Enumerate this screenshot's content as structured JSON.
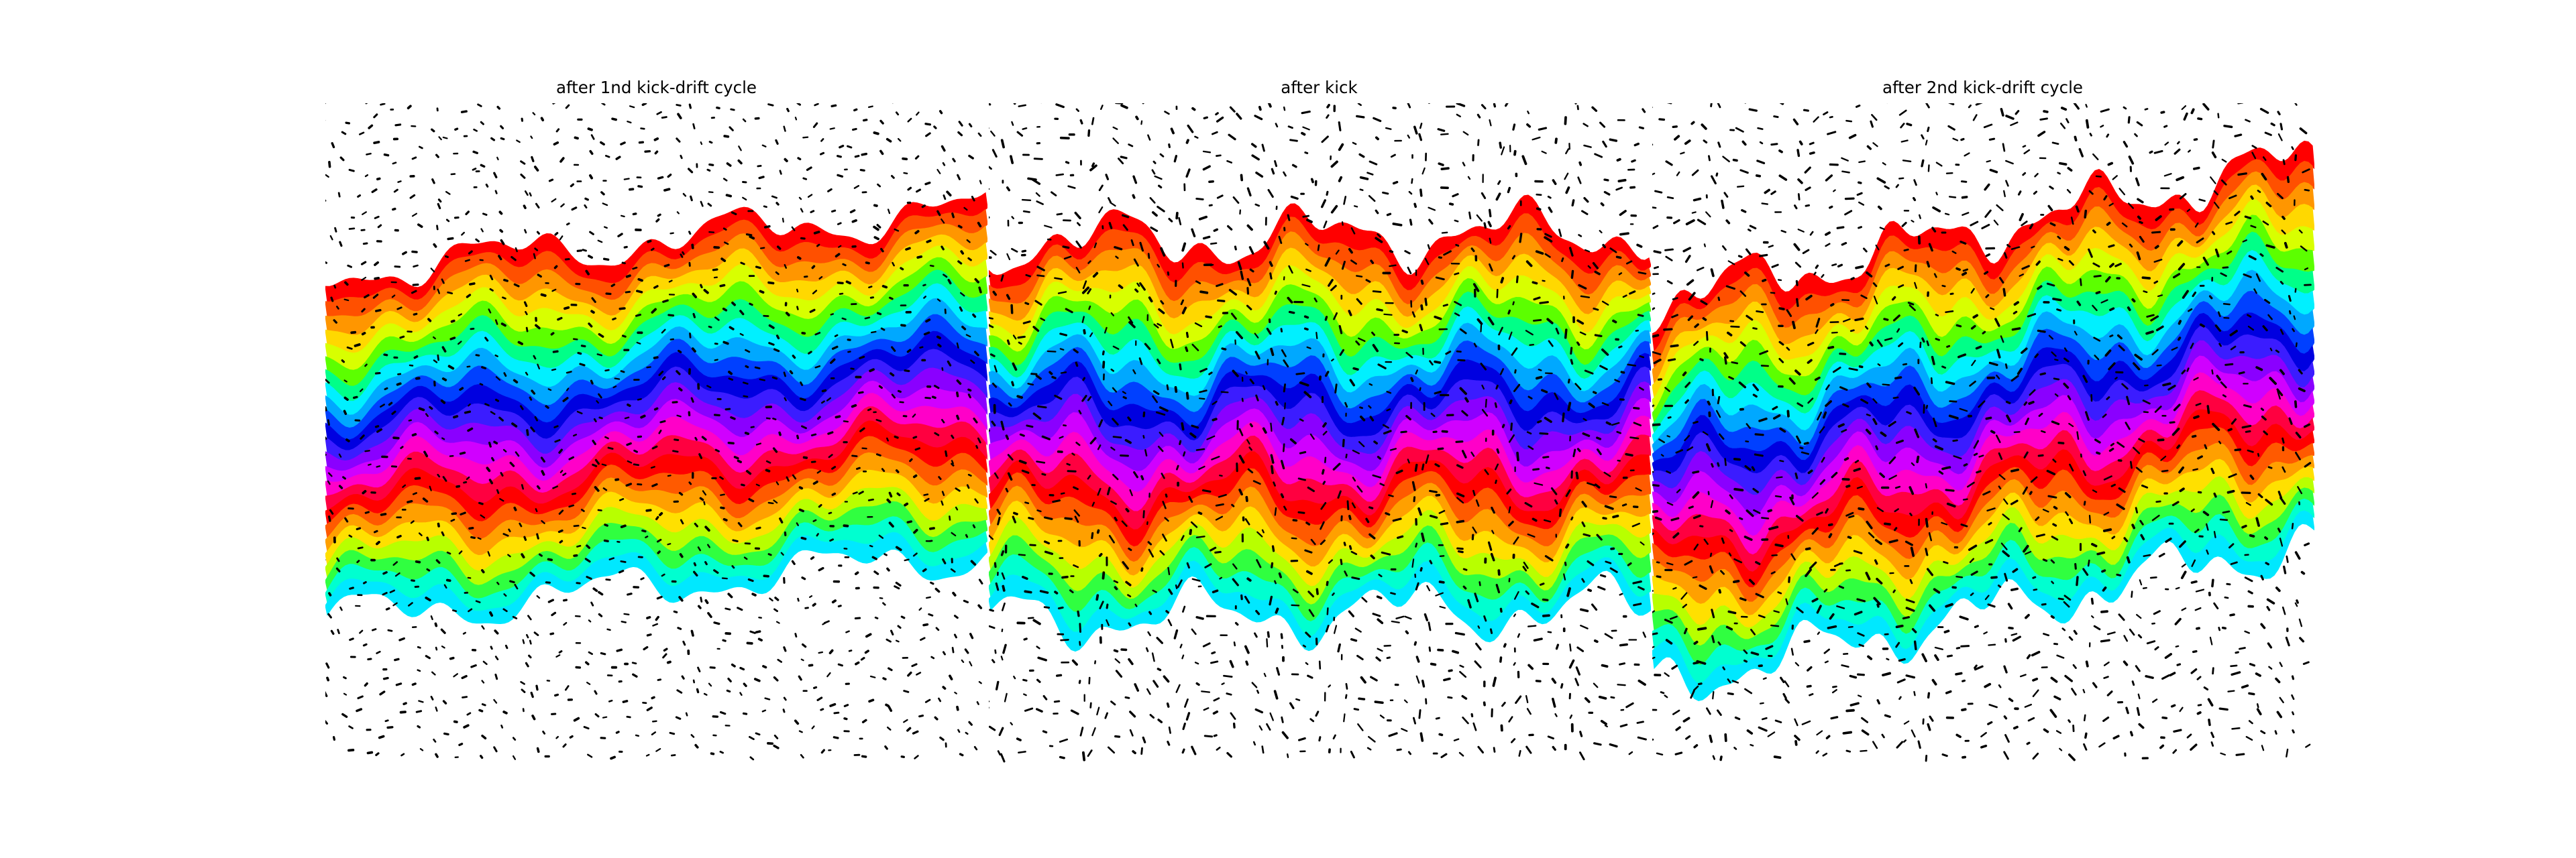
{
  "figure": {
    "panels": [
      {
        "id": "p1",
        "title": "after 1nd kick-drift cycle"
      },
      {
        "id": "p2",
        "title": "after kick"
      },
      {
        "id": "p3",
        "title": "after 2nd kick-drift cycle"
      }
    ]
  },
  "colors": {
    "band_top_to_middle": [
      "#ff0000",
      "#ff5000",
      "#ff9600",
      "#ffd800",
      "#d8ff00",
      "#5cff00",
      "#00ff88",
      "#00f0ff",
      "#00a8ff",
      "#0040ff",
      "#0000e0"
    ],
    "band_middle_to_bottom": [
      "#3b1cff",
      "#8a00ff",
      "#d000ff",
      "#ff00c8",
      "#ff0040",
      "#ff0000",
      "#ff5a00",
      "#ffa000",
      "#ffe000",
      "#b8ff00",
      "#30ff40",
      "#00ffd0",
      "#00e8ff"
    ],
    "particles": "#000000",
    "background": "#ffffff"
  }
}
